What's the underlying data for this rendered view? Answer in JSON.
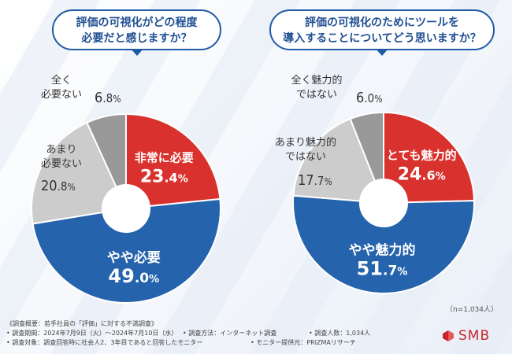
{
  "colors": {
    "red": "#d9312d",
    "blue": "#2563ad",
    "lightgray": "#cccccc",
    "darkgray": "#999999",
    "title_blue": "#1f4f93"
  },
  "chart_data": [
    {
      "type": "pie",
      "style": "donut",
      "title_lines": [
        "評価の可視化がどの程度",
        "必要だと感じますか？"
      ],
      "slices": [
        {
          "label": "非常に必要",
          "value": 23.4,
          "pct_int": "23",
          "pct_dec": ".4",
          "pct_unit": "%",
          "color": "#d9312d"
        },
        {
          "label": "やや必要",
          "value": 49.0,
          "pct_int": "49",
          "pct_dec": ".0",
          "pct_unit": "%",
          "color": "#2563ad"
        },
        {
          "label_lines": [
            "あまり",
            "必要ない"
          ],
          "value": 20.8,
          "pct_int": "20",
          "pct_dec": ".8",
          "pct_unit": "%",
          "color": "#cccccc"
        },
        {
          "label_lines": [
            "全く",
            "必要ない"
          ],
          "value": 6.8,
          "pct_int": "6",
          "pct_dec": ".8",
          "pct_unit": "%",
          "color": "#999999"
        }
      ]
    },
    {
      "type": "pie",
      "style": "donut",
      "title_lines": [
        "評価の可視化のためにツールを",
        "導入することについてどう思いますか？"
      ],
      "slices": [
        {
          "label": "とても魅力的",
          "value": 24.6,
          "pct_int": "24",
          "pct_dec": ".6",
          "pct_unit": "%",
          "color": "#d9312d"
        },
        {
          "label": "やや魅力的",
          "value": 51.7,
          "pct_int": "51",
          "pct_dec": ".7",
          "pct_unit": "%",
          "color": "#2563ad"
        },
        {
          "label_lines": [
            "あまり魅力的",
            "ではない"
          ],
          "value": 17.7,
          "pct_int": "17",
          "pct_dec": ".7",
          "pct_unit": "%",
          "color": "#cccccc"
        },
        {
          "label_lines": [
            "全く魅力的",
            "ではない"
          ],
          "value": 6.0,
          "pct_int": "6",
          "pct_dec": ".0",
          "pct_unit": "%",
          "color": "#999999"
        }
      ]
    }
  ],
  "sample_note": "（n=1,034人）",
  "footer": {
    "line1": "《調査概要：若手社員の「評価」に対する不満調査》",
    "line2a": "• 調査期間：2024年7月9日（火）～2024年7月10日（水）",
    "line2b": "• 調査方法：インターネット調査",
    "line2c": "• 調査人数：1,034人",
    "line3a": "• 調査対象：調査回答時に社会人2、3年目であると回答したモニター",
    "line3b": "• モニター提供元：PRIZMAリサーチ"
  },
  "logo": {
    "text": "SMB"
  }
}
